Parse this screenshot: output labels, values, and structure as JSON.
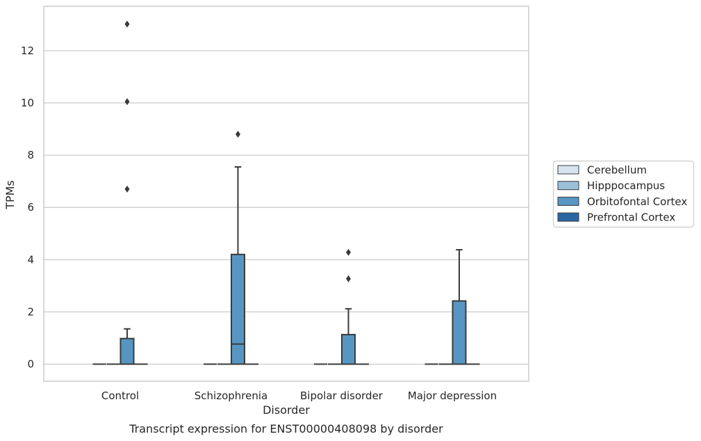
{
  "chart_data": {
    "type": "box",
    "title": "",
    "caption": "Transcript expression for ENST00000408098 by disorder",
    "xlabel": "Disorder",
    "ylabel": "TPMs",
    "categories": [
      "Control",
      "Schizophrenia",
      "Bipolar disorder",
      "Major depression"
    ],
    "ylim": [
      -0.65,
      13.5
    ],
    "yticks": [
      0,
      2,
      4,
      6,
      8,
      10,
      12
    ],
    "grid": "y",
    "legend_position": "right",
    "hue_order": [
      "Cerebellum",
      "Hipppocampus",
      "Orbitofontal Cortex",
      "Prefrontal Cortex"
    ],
    "colors": {
      "Cerebellum": "#d6e4f0",
      "Hipppocampus": "#9bc0da",
      "Orbitofontal Cortex": "#5796c2",
      "Prefrontal Cortex": "#2a66a3",
      "edge": "#3a3a3a",
      "grid": "#cccccc",
      "frame": "#cccccc"
    },
    "series": [
      {
        "name": "Cerebellum",
        "boxes": [
          {
            "category": "Control",
            "min": 0,
            "q1": 0,
            "median": 0,
            "q3": 0,
            "max": 0,
            "outliers": []
          },
          {
            "category": "Schizophrenia",
            "min": 0,
            "q1": 0,
            "median": 0,
            "q3": 0,
            "max": 0,
            "outliers": []
          },
          {
            "category": "Bipolar disorder",
            "min": 0,
            "q1": 0,
            "median": 0,
            "q3": 0,
            "max": 0,
            "outliers": []
          },
          {
            "category": "Major depression",
            "min": 0,
            "q1": 0,
            "median": 0,
            "q3": 0,
            "max": 0,
            "outliers": []
          }
        ]
      },
      {
        "name": "Hipppocampus",
        "boxes": [
          {
            "category": "Control",
            "min": 0,
            "q1": 0,
            "median": 0,
            "q3": 0,
            "max": 0,
            "outliers": []
          },
          {
            "category": "Schizophrenia",
            "min": 0,
            "q1": 0,
            "median": 0,
            "q3": 0,
            "max": 0,
            "outliers": []
          },
          {
            "category": "Bipolar disorder",
            "min": 0,
            "q1": 0,
            "median": 0,
            "q3": 0,
            "max": 0,
            "outliers": []
          },
          {
            "category": "Major depression",
            "min": 0,
            "q1": 0,
            "median": 0,
            "q3": 0,
            "max": 0,
            "outliers": []
          }
        ]
      },
      {
        "name": "Orbitofontal Cortex",
        "boxes": [
          {
            "category": "Control",
            "min": 0,
            "q1": 0,
            "median": 0,
            "q3": 0.98,
            "max": 1.35,
            "outliers": [
              6.7,
              10.05,
              13.02
            ]
          },
          {
            "category": "Schizophrenia",
            "min": 0,
            "q1": 0,
            "median": 0.77,
            "q3": 4.2,
            "max": 7.55,
            "outliers": [
              8.8
            ]
          },
          {
            "category": "Bipolar disorder",
            "min": 0,
            "q1": 0,
            "median": 0,
            "q3": 1.13,
            "max": 2.12,
            "outliers": [
              3.27,
              4.28
            ]
          },
          {
            "category": "Major depression",
            "min": 0,
            "q1": 0,
            "median": 0,
            "q3": 2.42,
            "max": 4.38,
            "outliers": []
          }
        ]
      },
      {
        "name": "Prefrontal Cortex",
        "boxes": [
          {
            "category": "Control",
            "min": 0,
            "q1": 0,
            "median": 0,
            "q3": 0,
            "max": 0,
            "outliers": []
          },
          {
            "category": "Schizophrenia",
            "min": 0,
            "q1": 0,
            "median": 0,
            "q3": 0,
            "max": 0,
            "outliers": []
          },
          {
            "category": "Bipolar disorder",
            "min": 0,
            "q1": 0,
            "median": 0,
            "q3": 0,
            "max": 0,
            "outliers": []
          },
          {
            "category": "Major depression",
            "min": 0,
            "q1": 0,
            "median": 0,
            "q3": 0,
            "max": 0,
            "outliers": []
          }
        ]
      }
    ]
  }
}
